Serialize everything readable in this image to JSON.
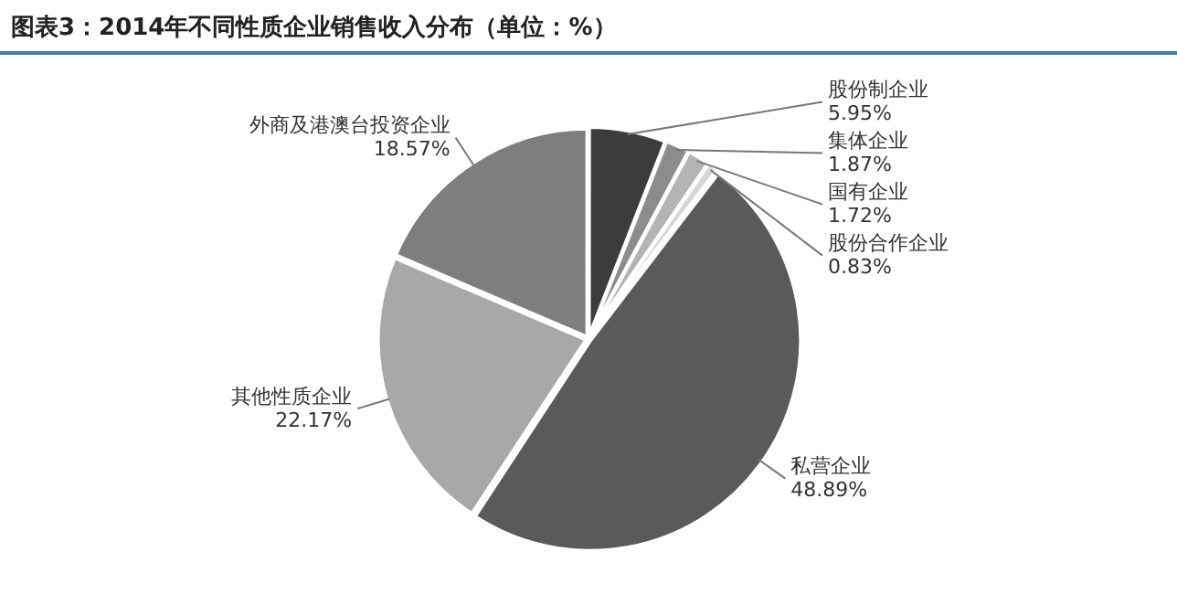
{
  "chart_data": {
    "type": "pie",
    "title": "图表3：2014年不同性质企业销售收入分布（单位：%）",
    "categories": [
      "股份制企业",
      "集体企业",
      "国有企业",
      "股份合作企业",
      "私营企业",
      "其他性质企业",
      "外商及港澳台投资企业"
    ],
    "values": [
      5.95,
      1.87,
      1.72,
      0.83,
      48.89,
      22.17,
      18.57
    ],
    "colors": [
      "#3c3c3c",
      "#8c8c8c",
      "#b4b4b4",
      "#d6d6d6",
      "#5a5a5a",
      "#a8a8a8",
      "#7e7e7e"
    ],
    "value_labels": [
      "5.95%",
      "1.87%",
      "1.72%",
      "0.83%",
      "48.89%",
      "22.17%",
      "18.57%"
    ],
    "legend": false
  }
}
